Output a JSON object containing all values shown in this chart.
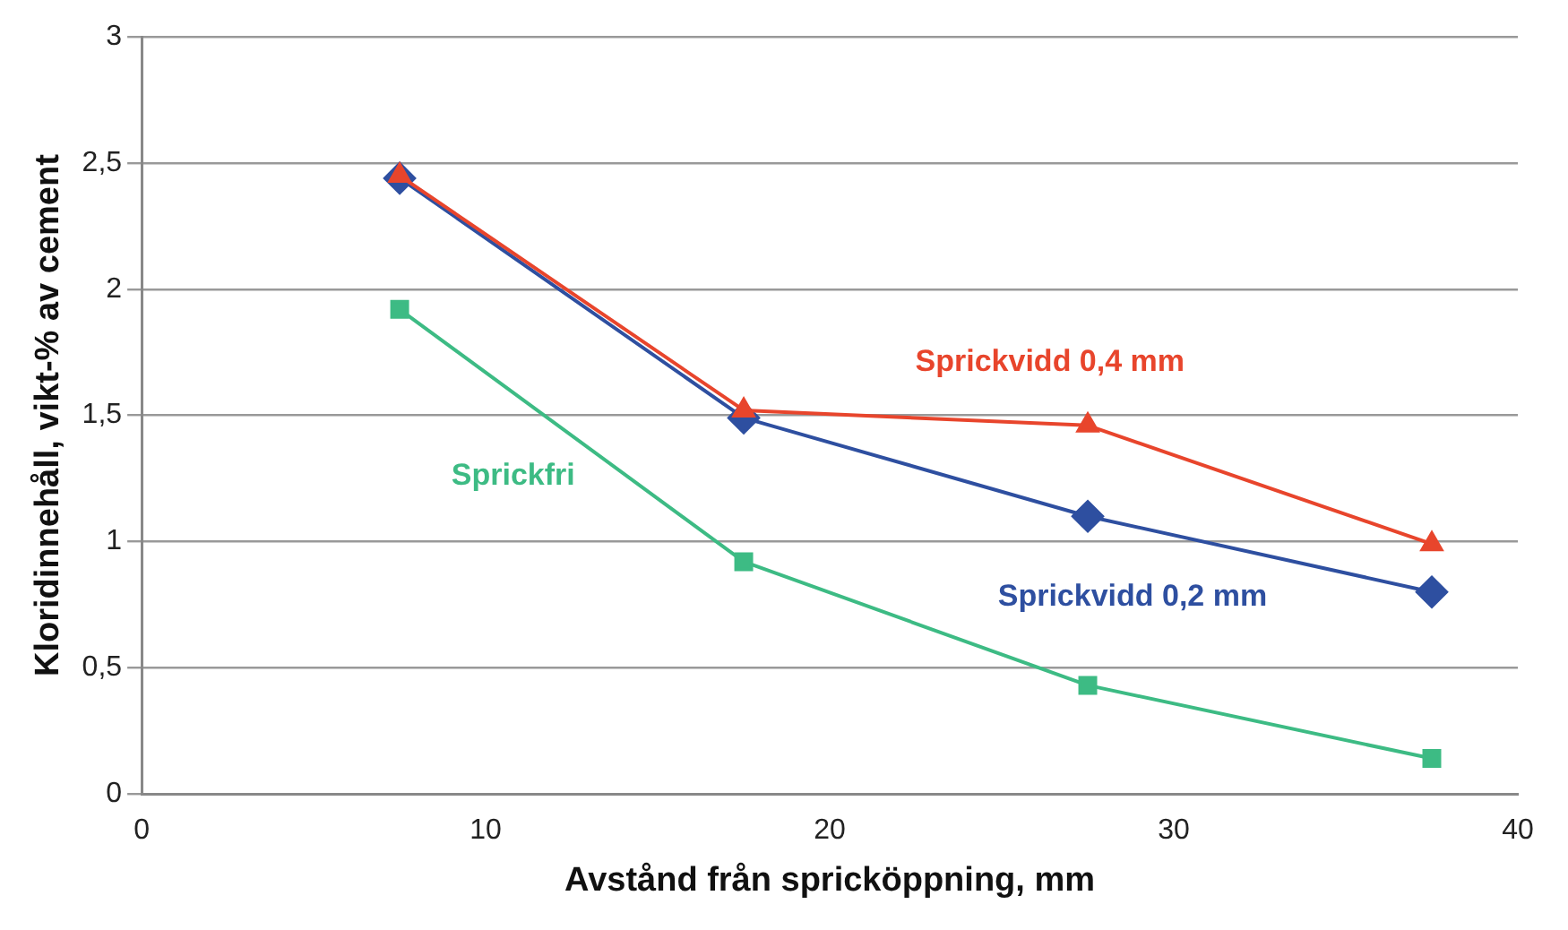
{
  "chart_data": {
    "type": "line",
    "xlabel": "Avstånd från spricköppning, mm",
    "ylabel": "Kloridinnehåll, vikt-% av cement",
    "xlim": [
      0,
      40
    ],
    "xticks": [
      0,
      10,
      20,
      30,
      40
    ],
    "ylim": [
      0,
      3
    ],
    "yticks": [
      0,
      {
        "value": 0.5,
        "label": "0,5"
      },
      1,
      {
        "value": 1.5,
        "label": "1,5"
      },
      2,
      {
        "value": 2.5,
        "label": "2,5"
      },
      3
    ],
    "grid": "y",
    "legend": false,
    "line_style": "solid",
    "series": [
      {
        "name": "Sprickvidd 0,4 mm",
        "color": "#e8452c",
        "marker": "triangle",
        "x": [
          7.5,
          17.5,
          27.5,
          37.5
        ],
        "values": [
          2.45,
          1.52,
          1.46,
          0.99
        ]
      },
      {
        "name": "Sprickvidd 0,2 mm",
        "color": "#2e4fa0",
        "marker": "diamond",
        "x": [
          7.5,
          17.5,
          27.5,
          37.5
        ],
        "values": [
          2.44,
          1.49,
          1.1,
          0.8
        ]
      },
      {
        "name": "Sprickfri",
        "color": "#3dbb84",
        "marker": "square",
        "x": [
          7.5,
          17.5,
          27.5,
          37.5
        ],
        "values": [
          1.92,
          0.92,
          0.43,
          0.14
        ]
      }
    ]
  }
}
